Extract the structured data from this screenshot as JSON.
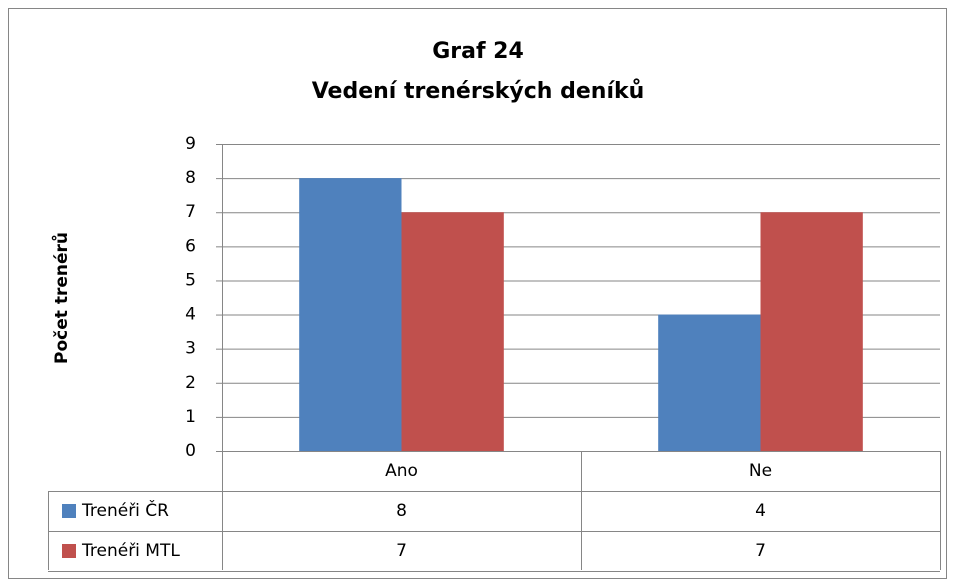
{
  "chart_data": {
    "type": "bar",
    "title": "Graf 24",
    "subtitle": "Vedení trenérských deníků",
    "y_label": "Počet trenérů",
    "categories": [
      "Ano",
      "Ne"
    ],
    "series": [
      {
        "name": "Trenéři ČR",
        "color": "#4f81bd",
        "values": [
          8,
          4
        ]
      },
      {
        "name": "Trenéři MTL",
        "color": "#c0504d",
        "values": [
          7,
          7
        ]
      }
    ],
    "ylim": [
      0,
      9
    ],
    "yticks": [
      0,
      1,
      2,
      3,
      4,
      5,
      6,
      7,
      8,
      9
    ],
    "grid": true,
    "data_table": true
  }
}
